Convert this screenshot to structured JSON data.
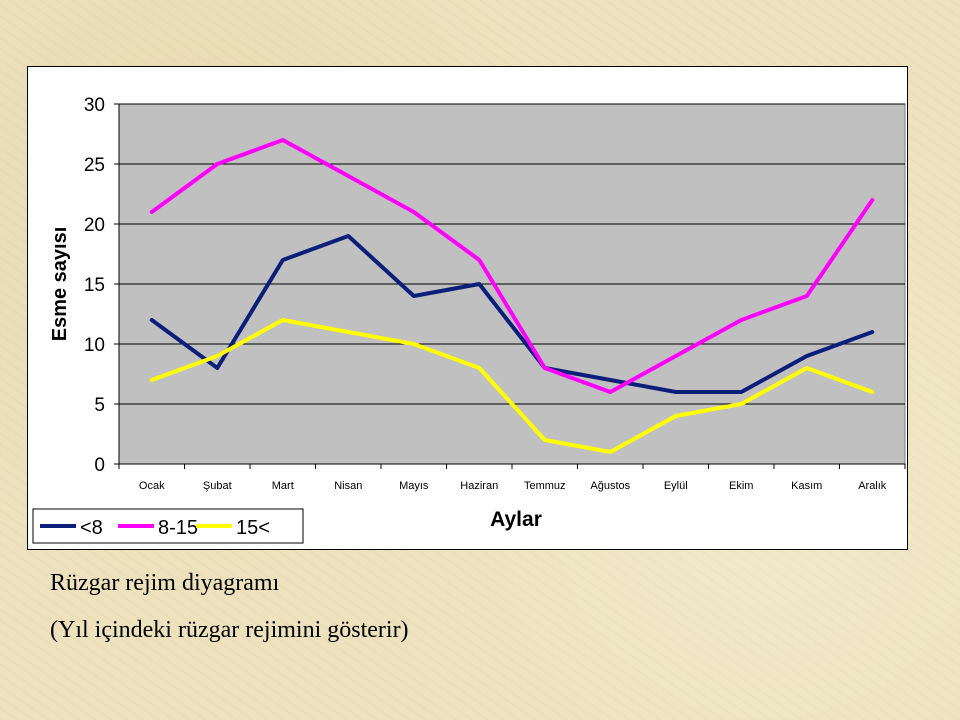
{
  "chart_data": {
    "type": "line",
    "categories": [
      "Ocak",
      "Şubat",
      "Mart",
      "Nisan",
      "Mayıs",
      "Haziran",
      "Temmuz",
      "Ağustos",
      "Eylül",
      "Ekim",
      "Kasım",
      "Aralık"
    ],
    "series": [
      {
        "name": "<8",
        "color": "#0b1f7a",
        "values": [
          12,
          8,
          17,
          19,
          14,
          15,
          8,
          7,
          6,
          6,
          9,
          11
        ]
      },
      {
        "name": "8-15",
        "color": "#ff00ff",
        "values": [
          21,
          25,
          27,
          24,
          21,
          17,
          8,
          6,
          9,
          12,
          14,
          22
        ]
      },
      {
        "name": "15<",
        "color": "#ffff00",
        "values": [
          7,
          9,
          12,
          11,
          10,
          8,
          2,
          1,
          4,
          5,
          8,
          6
        ]
      }
    ],
    "yticks": [
      "0",
      "5",
      "10",
      "15",
      "20",
      "25",
      "30"
    ],
    "ylim": [
      0,
      30
    ],
    "xlabel": "Aylar",
    "ylabel": "Esme sayısı",
    "grid": true,
    "legend": "bottom-left",
    "plot_background": "#c0c0c0"
  },
  "caption": {
    "line1": "Rüzgar rejim diyagramı",
    "line2": "(Yıl içindeki rüzgar rejimini gösterir)"
  }
}
